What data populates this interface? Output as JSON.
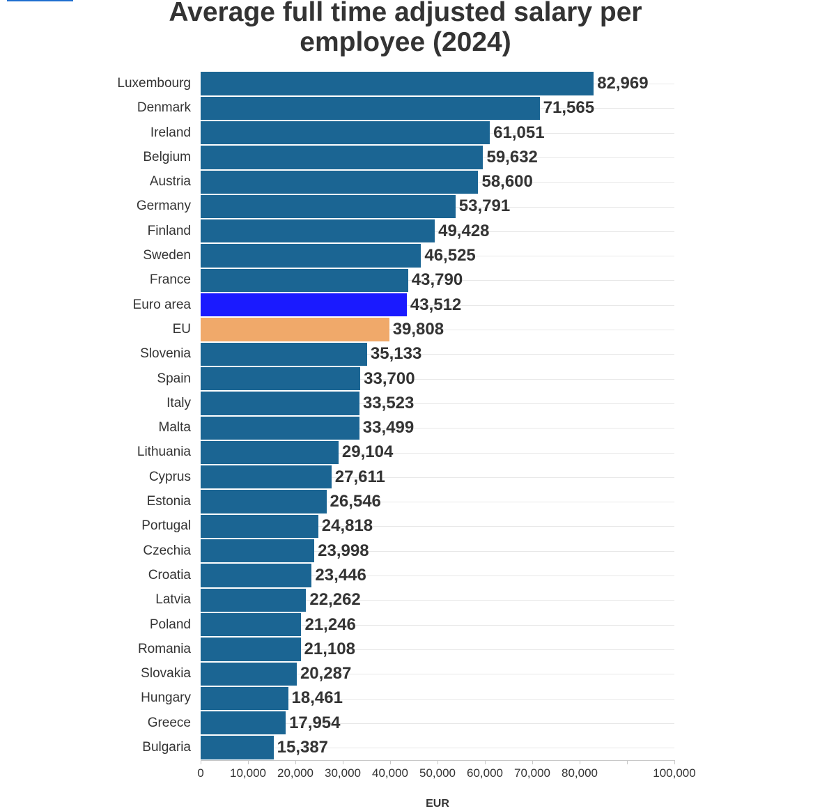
{
  "chart_data": {
    "type": "bar",
    "orientation": "horizontal",
    "title": "Average full time adjusted salary per employee (2024)",
    "categories": [
      "Luxembourg",
      "Denmark",
      "Ireland",
      "Belgium",
      "Austria",
      "Germany",
      "Finland",
      "Sweden",
      "France",
      "Euro area",
      "EU",
      "Slovenia",
      "Spain",
      "Italy",
      "Malta",
      "Lithuania",
      "Cyprus",
      "Estonia",
      "Portugal",
      "Czechia",
      "Croatia",
      "Latvia",
      "Poland",
      "Romania",
      "Slovakia",
      "Hungary",
      "Greece",
      "Bulgaria"
    ],
    "values": [
      82969,
      71565,
      61051,
      59632,
      58600,
      53791,
      49428,
      46525,
      43790,
      43512,
      39808,
      35133,
      33700,
      33523,
      33499,
      29104,
      27611,
      26546,
      24818,
      23998,
      23446,
      22262,
      21246,
      21108,
      20287,
      18461,
      17954,
      15387
    ],
    "xlabel": "EUR",
    "ylabel": "",
    "xlim": [
      0,
      100000
    ],
    "x_ticks": [
      0,
      10000,
      20000,
      30000,
      40000,
      50000,
      60000,
      70000,
      80000,
      90000,
      100000
    ],
    "x_tick_labels": [
      "0",
      "10,000",
      "20,000",
      "30,000",
      "40,000",
      "50,000",
      "60,000",
      "70,000",
      "80,000",
      "",
      "100,000"
    ],
    "value_labels": true,
    "grid": {
      "horizontal": true,
      "vertical": false
    },
    "legend": "none",
    "colors": {
      "default": "#1b6593",
      "highlight": {
        "Euro area": "#1a1aff",
        "EU": "#f0a96a"
      },
      "text": "#333333",
      "gridline": "#e8e8e8",
      "axis": "#c8c8c8"
    }
  }
}
